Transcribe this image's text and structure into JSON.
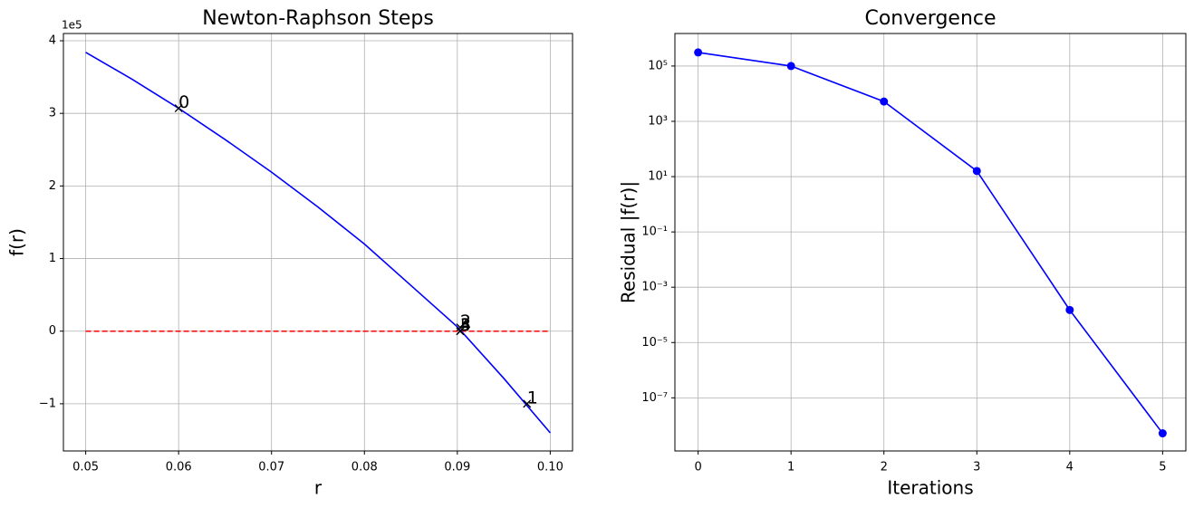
{
  "chart_data": [
    {
      "type": "line",
      "title": "Newton-Raphson Steps",
      "xlabel": "r",
      "ylabel": "f(r)",
      "y_offset_label": "1e5",
      "xlim": [
        0.0476,
        0.1024
      ],
      "ylim": [
        -165000,
        410000
      ],
      "xticks": [
        0.05,
        0.06,
        0.07,
        0.08,
        0.09,
        {
          "value": 0.1,
          "label": "0.10"
        }
      ],
      "yticks": [
        {
          "value": -100000,
          "label": "−1"
        },
        0,
        {
          "value": 100000,
          "label": "1"
        },
        {
          "value": 200000,
          "label": "2"
        },
        {
          "value": 300000,
          "label": "3"
        },
        {
          "value": 400000,
          "label": "4"
        }
      ],
      "grid": true,
      "series": [
        {
          "color": "#0000ff",
          "x": [
            0.05,
            0.055,
            0.06,
            0.065,
            0.07,
            0.075,
            0.08,
            0.085,
            0.09,
            0.095,
            0.1
          ],
          "values": [
            384000,
            347000,
            307000,
            264000,
            219000,
            171000,
            120000,
            63000,
            6000,
            -65000,
            -140000
          ]
        }
      ],
      "hline": {
        "y": 0,
        "xmin": 0.05,
        "xmax": 0.1,
        "color": "#ff0000"
      },
      "markers": {
        "color": "#000000",
        "x": [
          0.06,
          0.0975,
          0.0903,
          0.0903,
          0.0903,
          0.0903
        ],
        "y": [
          307000,
          -100000,
          5200,
          16,
          0.00015,
          5.2e-09
        ],
        "labels": [
          "0",
          "1",
          "2",
          "3",
          "4",
          "5"
        ]
      }
    },
    {
      "type": "line",
      "title": "Convergence",
      "xlabel": "Iterations",
      "ylabel": "Residual |f(r)|",
      "xlim": [
        -0.25,
        5.25
      ],
      "ylim": [
        1500000.0,
        1.2e-09
      ],
      "yscale": "log",
      "xticks": [
        0,
        1,
        2,
        3,
        4,
        5
      ],
      "yticks": [
        {
          "value": 1e-07,
          "label": "10⁻⁷"
        },
        {
          "value": 1e-05,
          "label": "10⁻⁵"
        },
        {
          "value": 0.001,
          "label": "10⁻³"
        },
        {
          "value": 0.1,
          "label": "10⁻¹"
        },
        {
          "value": 10,
          "label": "10¹"
        },
        {
          "value": 1000,
          "label": "10³"
        },
        {
          "value": 100000,
          "label": "10⁵"
        }
      ],
      "grid": true,
      "series": [
        {
          "color": "#0000ff",
          "marker": true,
          "x": [
            0,
            1,
            2,
            3,
            4,
            5
          ],
          "values": [
            310000,
            100000,
            5200,
            16,
            0.00015,
            5.2e-09
          ]
        }
      ]
    }
  ]
}
